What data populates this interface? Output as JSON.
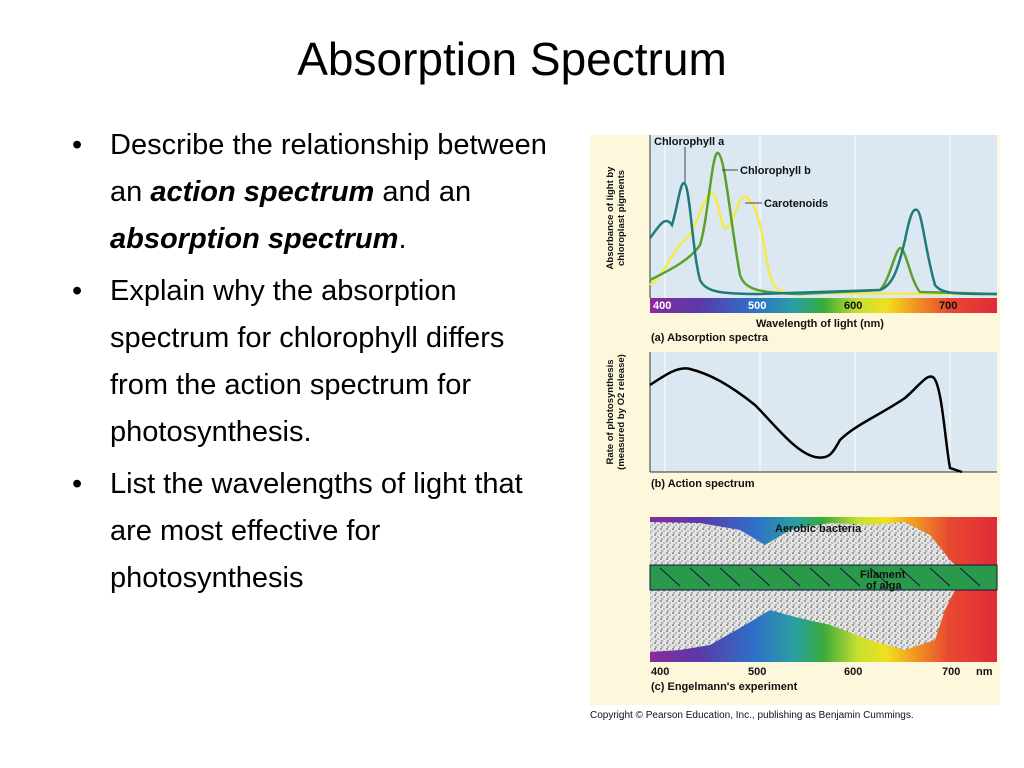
{
  "title": "Absorption Spectrum",
  "bullets": [
    {
      "segments": [
        {
          "text": "Describe the relationship between an "
        },
        {
          "text": "action spectrum",
          "emphasis": true
        },
        {
          "text": " and an "
        },
        {
          "text": "absorption spectrum",
          "emphasis": true
        },
        {
          "text": "."
        }
      ]
    },
    {
      "segments": [
        {
          "text": "Explain why the absorption spectrum for chlorophyll differs from the action spectrum for photosynthesis."
        }
      ]
    },
    {
      "segments": [
        {
          "text": "List the wavelengths of light that are most effective for photosynthesis"
        }
      ]
    }
  ],
  "figure": {
    "panel_a": {
      "y_label": [
        "Absorbance of light by",
        "chloroplast pigments"
      ],
      "curves": [
        "Chlorophyll a",
        "Chlorophyll b",
        "Carotenoids"
      ],
      "ticks": [
        "400",
        "500",
        "600",
        "700"
      ],
      "x_label": "Wavelength of light (nm)",
      "caption": "(a) Absorption spectra"
    },
    "panel_b": {
      "y_label": [
        "Rate of photosynthesis",
        "(measured by O2 release)"
      ],
      "caption": "(b) Action spectrum"
    },
    "panel_c": {
      "labels": [
        "Aerobic bacteria",
        "Filament",
        "of alga"
      ],
      "ticks": [
        "400",
        "500",
        "600",
        "700"
      ],
      "unit": "nm",
      "caption": "(c) Engelmann's experiment"
    },
    "copyright": "Copyright © Pearson Education, Inc., publishing as Benjamin Cummings."
  }
}
